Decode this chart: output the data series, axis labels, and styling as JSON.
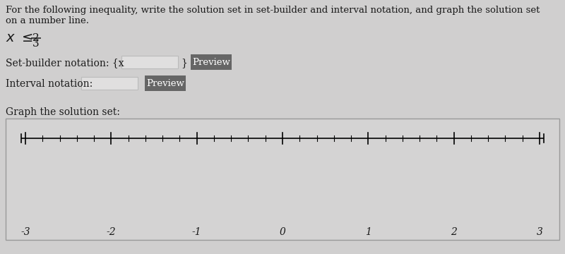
{
  "bg_color": "#d0cfcf",
  "text_color": "#1a1a1a",
  "title_line1": "For the following inequality, write the solution set in set-builder and interval notation, and graph the solution set",
  "title_line2": "on a number line.",
  "set_builder_label": "Set-builder notation: {x",
  "set_builder_close": "}",
  "interval_label": "Interval notation:",
  "preview_btn_color": "#666666",
  "preview_text_color": "#ffffff",
  "graph_label": "Graph the solution set:",
  "number_line_bg": "#d4d3d3",
  "number_line_border": "#999999",
  "axis_min": -3,
  "axis_max": 3,
  "axis_ticks": [
    -3,
    -2,
    -1,
    0,
    1,
    2,
    3
  ],
  "input_box_color": "#e0dfdf",
  "input_box_border": "#bbbbbb",
  "title_fontsize": 9.5,
  "label_fontsize": 10,
  "ineq_fontsize": 13
}
